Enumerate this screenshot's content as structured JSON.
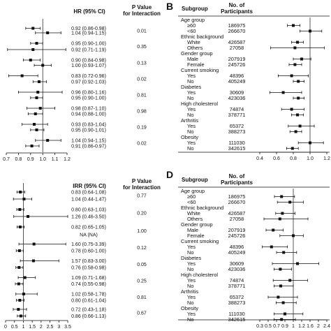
{
  "panel_b_label": "B",
  "panel_d_label": "D",
  "chart_data": [
    {
      "id": "A",
      "type": "forest",
      "columns": [
        "HR (95% CI)",
        "P Value\nfor Interaction"
      ],
      "effect_header": "HR (95% CI)",
      "pval_header_line1": "P Value",
      "pval_header_line2": "for Interaction",
      "xlim": [
        0.7,
        1.2
      ],
      "xticks": [
        "0.7",
        "0.8",
        "0.9",
        "1.0",
        "1.1",
        "1.2"
      ],
      "ref_line": 1.0,
      "rows": [
        {
          "label": "0.92 (0.86-0.98)",
          "est": 0.92,
          "lo": 0.86,
          "hi": 0.98
        },
        {
          "label": "1.04 (0.94-1.15)",
          "est": 1.04,
          "lo": 0.94,
          "hi": 1.15
        },
        {
          "label": "0.95 (0.90-1.00)",
          "est": 0.95,
          "lo": 0.9,
          "hi": 1.0
        },
        {
          "label": "0.92 (0.71-1.19)",
          "est": 0.92,
          "lo": 0.71,
          "hi": 1.19
        },
        {
          "label": "0.90 (0.84-0.98)",
          "est": 0.9,
          "lo": 0.84,
          "hi": 0.98
        },
        {
          "label": "1.00 (0.93-1.07)",
          "est": 1.0,
          "lo": 0.93,
          "hi": 1.07
        },
        {
          "label": "0.83 (0.72-0.96)",
          "est": 0.83,
          "lo": 0.72,
          "hi": 0.96
        },
        {
          "label": "0.97 (0.92-1.03)",
          "est": 0.97,
          "lo": 0.92,
          "hi": 1.03
        },
        {
          "label": "0.96 (0.80-1.16)",
          "est": 0.96,
          "lo": 0.8,
          "hi": 1.16
        },
        {
          "label": "0.95 (0.90-1.00)",
          "est": 0.95,
          "lo": 0.9,
          "hi": 1.0
        },
        {
          "label": "0.98 (0.87-1.10)",
          "est": 0.98,
          "lo": 0.87,
          "hi": 1.1
        },
        {
          "label": "0.94 (0.88-1.00)",
          "est": 0.94,
          "lo": 0.88,
          "hi": 1.0
        },
        {
          "label": "0.93 (0.83-1.04)",
          "est": 0.93,
          "lo": 0.83,
          "hi": 1.04
        },
        {
          "label": "0.95 (0.90-1.01)",
          "est": 0.95,
          "lo": 0.9,
          "hi": 1.01
        },
        {
          "label": "1.04 (0.94-1.15)",
          "est": 1.04,
          "lo": 0.94,
          "hi": 1.15
        },
        {
          "label": "0.91 (0.86-0.97)",
          "est": 0.91,
          "lo": 0.86,
          "hi": 0.97
        }
      ],
      "pvalues": [
        "0.01",
        "0.35",
        "0.13",
        "0.02",
        "0.81",
        "0.98",
        "0.19",
        "0.02"
      ]
    },
    {
      "id": "B",
      "type": "forest",
      "subgroup_header": "Subgroup",
      "n_header_line1": "No. of",
      "n_header_line2": "Participants",
      "xlim": [
        0.4,
        1.2
      ],
      "xticks": [
        "0.4",
        "0.6",
        "0.8",
        "1.0",
        "1.2"
      ],
      "ref_line": 1.0,
      "groups": [
        {
          "name": "Age group",
          "rows": [
            {
              "label": "≥60",
              "n": "186975",
              "est": 0.8,
              "lo": 0.73,
              "hi": 0.88
            },
            {
              "label": "<60",
              "n": "266670",
              "est": 1.0,
              "lo": 0.88,
              "hi": 1.14
            }
          ]
        },
        {
          "name": "Ethnic background",
          "rows": [
            {
              "label": "White",
              "n": "426587",
              "est": 0.85,
              "lo": 0.78,
              "hi": 0.92
            },
            {
              "label": "Others",
              "n": "27058",
              "est": 0.82,
              "lo": 0.53,
              "hi": 1.17
            }
          ]
        },
        {
          "name": "Gender group",
          "rows": [
            {
              "label": "Male",
              "n": "207919",
              "est": 0.9,
              "lo": 0.8,
              "hi": 1.01
            },
            {
              "label": "Female",
              "n": "245726",
              "est": 0.82,
              "lo": 0.75,
              "hi": 0.9
            }
          ]
        },
        {
          "name": "Current smoking",
          "rows": [
            {
              "label": "Yes",
              "n": "48396",
              "est": 0.78,
              "lo": 0.62,
              "hi": 0.98
            },
            {
              "label": "No",
              "n": "405249",
              "est": 0.86,
              "lo": 0.8,
              "hi": 0.93
            }
          ]
        },
        {
          "name": "Diabetes",
          "rows": [
            {
              "label": "Yes",
              "n": "30609",
              "est": 0.68,
              "lo": 0.52,
              "hi": 0.9
            },
            {
              "label": "No",
              "n": "423036",
              "est": 0.86,
              "lo": 0.8,
              "hi": 0.93
            }
          ]
        },
        {
          "name": "High cholesterol",
          "rows": [
            {
              "label": "Yes",
              "n": "74874",
              "est": 0.78,
              "lo": 0.66,
              "hi": 0.93
            },
            {
              "label": "No",
              "n": "378771",
              "est": 0.85,
              "lo": 0.78,
              "hi": 0.92
            }
          ]
        },
        {
          "name": "Arthritis",
          "rows": [
            {
              "label": "Yes",
              "n": "65372",
              "est": 0.88,
              "lo": 0.74,
              "hi": 1.05
            },
            {
              "label": "No",
              "n": "388273",
              "est": 0.83,
              "lo": 0.76,
              "hi": 0.9
            }
          ]
        },
        {
          "name": "Obesity",
          "rows": [
            {
              "label": "Yes",
              "n": "111030",
              "est": 1.0,
              "lo": 0.86,
              "hi": 1.16
            },
            {
              "label": "No",
              "n": "342615",
              "est": 0.79,
              "lo": 0.72,
              "hi": 0.86
            }
          ]
        }
      ]
    },
    {
      "id": "C",
      "type": "forest",
      "effect_header": "IRR (95% CI)",
      "pval_header_line1": "P Value",
      "pval_header_line2": "for Interaction",
      "xlim": [
        0,
        3.5
      ],
      "xticks": [
        "0",
        "0.5",
        "1",
        "1.5",
        "2",
        "2.5",
        "3",
        "3.5"
      ],
      "ref_line": 1.0,
      "rows": [
        {
          "label": "0.83 (0.64-1.08)",
          "est": 0.83,
          "lo": 0.64,
          "hi": 1.08
        },
        {
          "label": "1.04 (0.44-1.47)",
          "est": 1.04,
          "lo": 0.44,
          "hi": 1.47
        },
        {
          "label": "0.80 (0.63-1.03)",
          "est": 0.8,
          "lo": 0.63,
          "hi": 1.03
        },
        {
          "label": "1.26 (0.46-3.50)",
          "est": 1.26,
          "lo": 0.46,
          "hi": 3.5
        },
        {
          "label": "0.82 (0.65-1.05)",
          "est": 0.82,
          "lo": 0.65,
          "hi": 1.05
        },
        {
          "label": "NA (NA)",
          "est": null,
          "lo": null,
          "hi": null
        },
        {
          "label": "1.60 (0.75-3.39)",
          "est": 1.6,
          "lo": 0.75,
          "hi": 3.39
        },
        {
          "label": "0.78 (0.60-1.00)",
          "est": 0.78,
          "lo": 0.6,
          "hi": 1.0
        },
        {
          "label": "1.57 (0.83-3.00)",
          "est": 1.57,
          "lo": 0.83,
          "hi": 3.0
        },
        {
          "label": "0.76 (0.58-0.98)",
          "est": 0.76,
          "lo": 0.58,
          "hi": 0.98
        },
        {
          "label": "1.09 (0.71-1.68)",
          "est": 1.09,
          "lo": 0.71,
          "hi": 1.68
        },
        {
          "label": "0.74 (0.55-0.98)",
          "est": 0.74,
          "lo": 0.55,
          "hi": 0.98
        },
        {
          "label": "1.02 (0.58-1.78)",
          "est": 1.02,
          "lo": 0.58,
          "hi": 1.78
        },
        {
          "label": "0.80 (0.61-1.04)",
          "est": 0.8,
          "lo": 0.61,
          "hi": 1.04
        },
        {
          "label": "0.72 (0.43-1.18)",
          "est": 0.72,
          "lo": 0.43,
          "hi": 1.18
        },
        {
          "label": "0.86 (0.66-1.13)",
          "est": 0.86,
          "lo": 0.66,
          "hi": 1.13
        }
      ],
      "pvalues": [
        "0.77",
        "0.20",
        "1.00",
        "0.12",
        "0.05",
        "0.25",
        "0.81",
        "0.67"
      ]
    },
    {
      "id": "D",
      "type": "forest",
      "subgroup_header": "Subgroup",
      "n_header_line1": "No. of",
      "n_header_line2": "Participants",
      "xlim": [
        0.3,
        2.4
      ],
      "xticks": [
        "0.3",
        "0.5",
        "0.7",
        "0.9",
        "1",
        "1.2",
        "1.6",
        "2",
        "2.4"
      ],
      "tick_positions": [
        0.3,
        0.5,
        0.7,
        0.9,
        1.0,
        1.2,
        1.6,
        2.0,
        2.4
      ],
      "ref_line": 1.0,
      "groups": [
        {
          "name": "Age group",
          "rows": [
            {
              "label": "≥60",
              "n": "186975",
              "est": 0.82,
              "lo": 0.65,
              "hi": 1.03
            },
            {
              "label": "<60",
              "n": "266670",
              "est": 0.96,
              "lo": 0.72,
              "hi": 1.28
            }
          ]
        },
        {
          "name": "Ethnic background",
          "rows": [
            {
              "label": "White",
              "n": "426587",
              "est": 0.84,
              "lo": 0.68,
              "hi": 1.04
            },
            {
              "label": "Others",
              "n": "27058",
              "est": 0.78,
              "lo": 0.4,
              "hi": 1.5
            }
          ]
        },
        {
          "name": "Gender group",
          "rows": [
            {
              "label": "Male",
              "n": "207919",
              "est": 0.62,
              "lo": 0.45,
              "hi": 0.86
            },
            {
              "label": "Female",
              "n": "245726",
              "est": 1.0,
              "lo": 0.78,
              "hi": 1.28
            }
          ]
        },
        {
          "name": "Current smoking",
          "rows": [
            {
              "label": "Yes",
              "n": "48396",
              "est": 0.58,
              "lo": 0.36,
              "hi": 0.93
            },
            {
              "label": "No",
              "n": "405249",
              "est": 0.87,
              "lo": 0.7,
              "hi": 1.08
            }
          ]
        },
        {
          "name": "Diabetes",
          "rows": [
            {
              "label": "Yes",
              "n": "30609",
              "est": 1.1,
              "lo": 0.6,
              "hi": 2.02
            },
            {
              "label": "No",
              "n": "423036",
              "est": 0.79,
              "lo": 0.64,
              "hi": 0.98
            }
          ]
        },
        {
          "name": "High cholesterol",
          "rows": [
            {
              "label": "Yes",
              "n": "74874",
              "est": 0.96,
              "lo": 0.62,
              "hi": 1.48
            },
            {
              "label": "No",
              "n": "378771",
              "est": 0.8,
              "lo": 0.64,
              "hi": 1.0
            }
          ]
        },
        {
          "name": "Arthritis",
          "rows": [
            {
              "label": "Yes",
              "n": "65372",
              "est": 0.74,
              "lo": 0.5,
              "hi": 1.1
            },
            {
              "label": "No",
              "n": "388273",
              "est": 0.86,
              "lo": 0.69,
              "hi": 1.07
            }
          ]
        },
        {
          "name": "Obesity",
          "rows": [
            {
              "label": "Yes",
              "n": "111030",
              "est": 0.9,
              "lo": 0.64,
              "hi": 1.26
            },
            {
              "label": "No",
              "n": "342615",
              "est": 0.82,
              "lo": 0.64,
              "hi": 1.05
            }
          ]
        }
      ]
    }
  ]
}
